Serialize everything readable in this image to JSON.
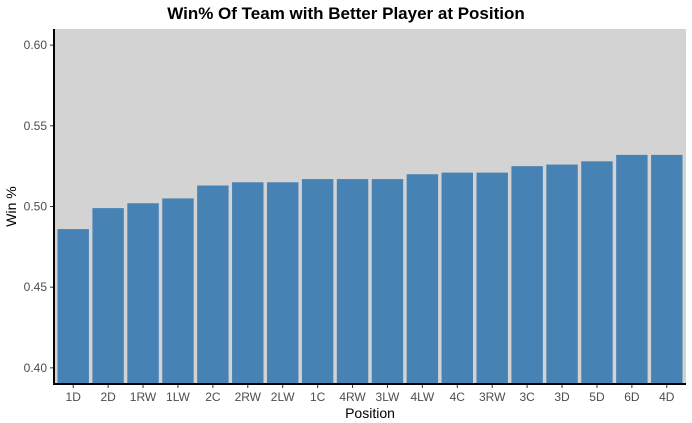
{
  "chart_data": {
    "type": "bar",
    "title": "Win% Of Team with Better Player at Position",
    "xlabel": "Position",
    "ylabel": "Win %",
    "categories": [
      "1D",
      "2D",
      "1RW",
      "1LW",
      "2C",
      "2RW",
      "2LW",
      "1C",
      "4RW",
      "3LW",
      "4LW",
      "4C",
      "3RW",
      "3C",
      "3D",
      "5D",
      "6D",
      "4D"
    ],
    "values": [
      0.486,
      0.499,
      0.502,
      0.505,
      0.513,
      0.515,
      0.515,
      0.517,
      0.517,
      0.517,
      0.52,
      0.521,
      0.521,
      0.525,
      0.526,
      0.528,
      0.532,
      0.532
    ],
    "ylim": [
      0.39,
      0.61
    ],
    "yticks": [
      0.4,
      0.45,
      0.5,
      0.55,
      0.6
    ],
    "ytick_labels": [
      "0.40",
      "0.45",
      "0.50",
      "0.55",
      "0.60"
    ],
    "grid": false,
    "legend": "none",
    "colors": {
      "bar": "#4682b4",
      "panel": "#d3d3d3"
    }
  }
}
